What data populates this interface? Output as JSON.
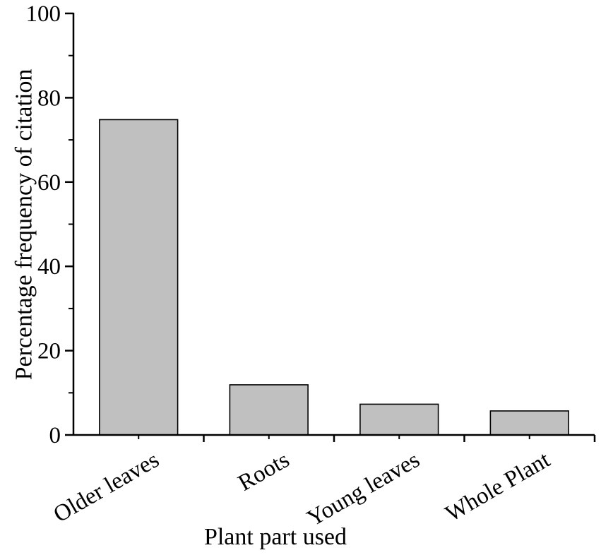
{
  "chart_data": {
    "type": "bar",
    "categories": [
      "Older leaves",
      "Roots",
      "Young leaves",
      "Whole Plant"
    ],
    "values": [
      74.8,
      11.9,
      7.3,
      5.7
    ],
    "xlabel": "Plant part used",
    "ylabel": "Percentage frequency of citation",
    "ylim": [
      0,
      100
    ],
    "yticks": [
      "0",
      "20",
      "40",
      "60",
      "80",
      "100"
    ],
    "yminor_step": 10,
    "grid": false,
    "bar_color": "#c0c0c0"
  }
}
